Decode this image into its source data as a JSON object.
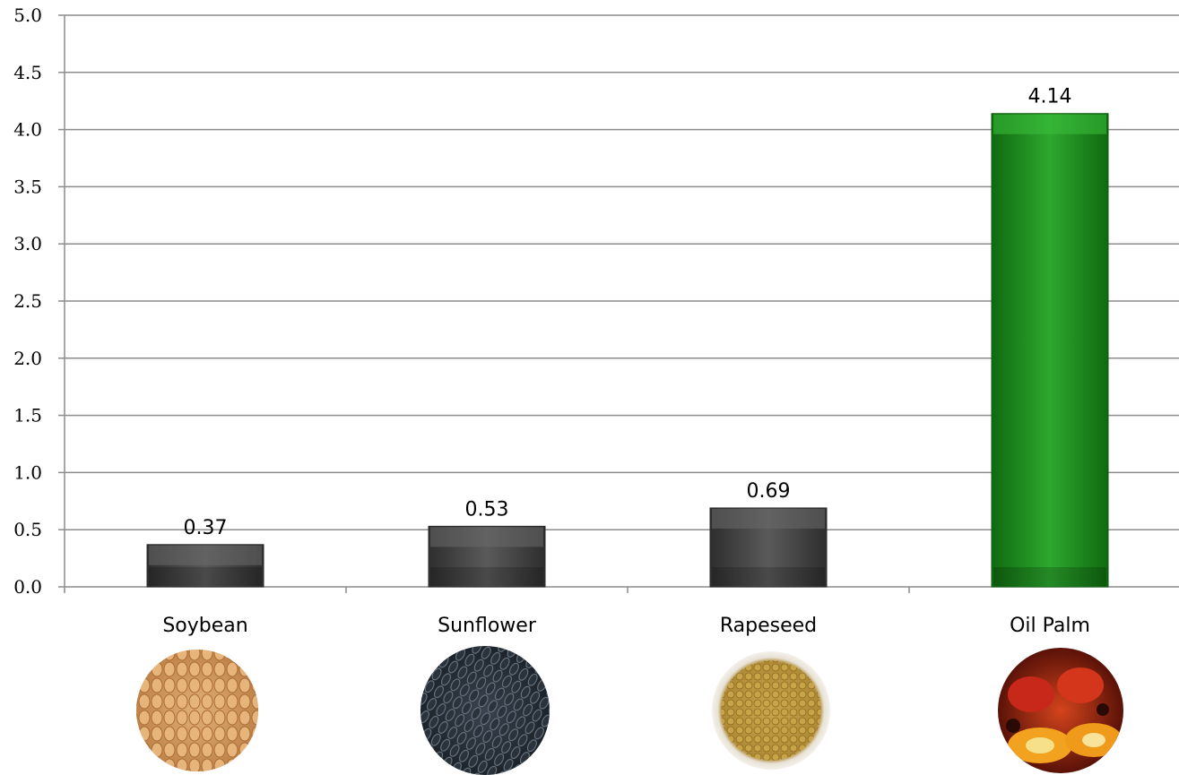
{
  "chart_data": {
    "type": "bar",
    "categories": [
      "Soybean",
      "Sunflower",
      "Rapeseed",
      "Oil Palm"
    ],
    "values": [
      0.37,
      0.53,
      0.69,
      4.14
    ],
    "value_labels": [
      "0.37",
      "0.53",
      "0.69",
      "4.14"
    ],
    "title": "",
    "xlabel": "",
    "ylabel": "",
    "ylim": [
      0,
      5.0
    ],
    "yticks": [
      "0.0",
      "0.5",
      "1.0",
      "1.5",
      "2.0",
      "2.5",
      "3.0",
      "3.5",
      "4.0",
      "4.5",
      "5.0"
    ],
    "grid": true,
    "bar_colors": [
      "#4a4a4a",
      "#4a4a4a",
      "#4a4a4a",
      "#1e8c1e"
    ],
    "category_images": [
      "soybean-seeds",
      "sunflower-seeds",
      "rapeseed-seeds",
      "oil-palm-fruit"
    ]
  }
}
